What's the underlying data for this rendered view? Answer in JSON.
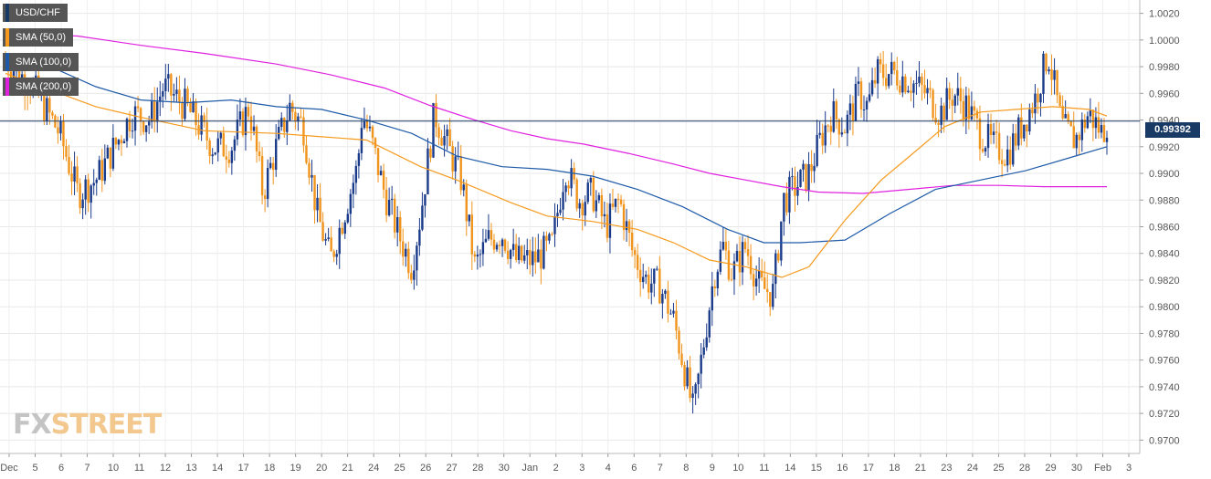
{
  "chart_data": {
    "type": "candlestick",
    "symbol": "USD/CHF",
    "timeframe": "1h",
    "legend": [
      {
        "label": "USD/CHF",
        "color": "#1a3a66"
      },
      {
        "label": "SMA (50,0)",
        "color": "#f59a1d"
      },
      {
        "label": "SMA (100,0)",
        "color": "#1e5aa8"
      },
      {
        "label": "SMA (200,0)",
        "color": "#e020e0"
      }
    ],
    "ylim": [
      0.969,
      1.003
    ],
    "yticks": [
      "1.0020",
      "1.0000",
      "0.9980",
      "0.9960",
      "0.9940",
      "0.9920",
      "0.9900",
      "0.9880",
      "0.9860",
      "0.9840",
      "0.9820",
      "0.9800",
      "0.9780",
      "0.9760",
      "0.9740",
      "0.9720",
      "0.9700"
    ],
    "xticks": [
      "Dec",
      "5",
      "6",
      "7",
      "10",
      "11",
      "12",
      "13",
      "14",
      "17",
      "18",
      "19",
      "20",
      "21",
      "24",
      "25",
      "26",
      "27",
      "28",
      "30",
      "Jan",
      "2",
      "3",
      "4",
      "6",
      "7",
      "8",
      "9",
      "10",
      "11",
      "14",
      "15",
      "16",
      "17",
      "18",
      "21",
      "23",
      "24",
      "25",
      "28",
      "29",
      "30",
      "Feb",
      "3"
    ],
    "last_price": "0.99392",
    "last_price_value": 0.99392,
    "close_path": [
      [
        0.0,
        0.9985
      ],
      [
        0.03,
        0.9965
      ],
      [
        0.06,
        0.993
      ],
      [
        0.08,
        0.9885
      ],
      [
        0.1,
        0.9895
      ],
      [
        0.125,
        0.9925
      ],
      [
        0.14,
        0.9945
      ],
      [
        0.16,
        0.994
      ],
      [
        0.175,
        0.9965
      ],
      [
        0.2,
        0.995
      ],
      [
        0.215,
        0.9935
      ],
      [
        0.23,
        0.992
      ],
      [
        0.25,
        0.992
      ],
      [
        0.27,
        0.995
      ],
      [
        0.285,
        0.9885
      ],
      [
        0.3,
        0.992
      ],
      [
        0.315,
        0.995
      ],
      [
        0.33,
        0.9935
      ],
      [
        0.345,
        0.987
      ],
      [
        0.36,
        0.9835
      ],
      [
        0.375,
        0.987
      ],
      [
        0.39,
        0.9905
      ],
      [
        0.395,
        0.9945
      ],
      [
        0.405,
        0.9925
      ],
      [
        0.42,
        0.9885
      ],
      [
        0.435,
        0.9855
      ],
      [
        0.45,
        0.983
      ],
      [
        0.46,
        0.987
      ],
      [
        0.475,
        0.9945
      ],
      [
        0.49,
        0.992
      ],
      [
        0.505,
        0.9895
      ],
      [
        0.52,
        0.983
      ],
      [
        0.535,
        0.985
      ],
      [
        0.55,
        0.9855
      ],
      [
        0.565,
        0.9835
      ],
      [
        0.585,
        0.9835
      ],
      [
        0.605,
        0.9845
      ],
      [
        0.62,
        0.9905
      ],
      [
        0.635,
        0.988
      ],
      [
        0.65,
        0.9885
      ],
      [
        0.665,
        0.986
      ],
      [
        0.68,
        0.988
      ],
      [
        0.695,
        0.984
      ],
      [
        0.71,
        0.982
      ],
      [
        0.725,
        0.9815
      ],
      [
        0.74,
        0.979
      ],
      [
        0.75,
        0.976
      ],
      [
        0.762,
        0.972
      ],
      [
        0.775,
        0.978
      ],
      [
        0.785,
        0.9825
      ],
      [
        0.795,
        0.9845
      ],
      [
        0.805,
        0.9825
      ],
      [
        0.82,
        0.9845
      ],
      [
        0.835,
        0.9815
      ],
      [
        0.85,
        0.981
      ],
      [
        0.862,
        0.988
      ],
      [
        0.875,
        0.989
      ],
      [
        0.89,
        0.99
      ],
      [
        0.905,
        0.993
      ],
      [
        0.915,
        0.9945
      ],
      [
        0.93,
        0.9935
      ],
      [
        0.945,
        0.996
      ],
      [
        0.955,
        0.995
      ],
      [
        0.965,
        0.9975
      ],
      [
        0.985,
        0.9975
      ],
      [
        1.0,
        0.997
      ],
      [
        1.02,
        0.996
      ],
      [
        1.035,
        0.9945
      ],
      [
        1.05,
        0.996
      ],
      [
        1.065,
        0.995
      ],
      [
        1.08,
        0.993
      ],
      [
        1.095,
        0.992
      ],
      [
        1.11,
        0.9915
      ],
      [
        1.125,
        0.9935
      ],
      [
        1.14,
        0.9955
      ],
      [
        1.155,
        0.999
      ],
      [
        1.17,
        0.9935
      ],
      [
        1.185,
        0.9925
      ],
      [
        1.2,
        0.9945
      ],
      [
        1.215,
        0.993
      ],
      [
        1.22,
        0.9939
      ]
    ],
    "sma50": [
      [
        0.0,
        0.9975
      ],
      [
        0.1,
        0.995
      ],
      [
        0.15,
        0.9942
      ],
      [
        0.22,
        0.9932
      ],
      [
        0.3,
        0.993
      ],
      [
        0.34,
        0.9928
      ],
      [
        0.4,
        0.9925
      ],
      [
        0.46,
        0.9905
      ],
      [
        0.5,
        0.9895
      ],
      [
        0.56,
        0.9878
      ],
      [
        0.6,
        0.9868
      ],
      [
        0.65,
        0.9864
      ],
      [
        0.7,
        0.9858
      ],
      [
        0.74,
        0.9848
      ],
      [
        0.78,
        0.9835
      ],
      [
        0.82,
        0.983
      ],
      [
        0.86,
        0.9822
      ],
      [
        0.89,
        0.983
      ],
      [
        0.93,
        0.9865
      ],
      [
        0.97,
        0.9895
      ],
      [
        1.0,
        0.9912
      ],
      [
        1.04,
        0.9935
      ],
      [
        1.08,
        0.9946
      ],
      [
        1.12,
        0.9948
      ],
      [
        1.16,
        0.995
      ],
      [
        1.2,
        0.9948
      ],
      [
        1.22,
        0.9943
      ]
    ],
    "sma100": [
      [
        0.0,
        0.999
      ],
      [
        0.05,
        0.998
      ],
      [
        0.1,
        0.9965
      ],
      [
        0.15,
        0.9955
      ],
      [
        0.2,
        0.9953
      ],
      [
        0.25,
        0.9955
      ],
      [
        0.3,
        0.995
      ],
      [
        0.35,
        0.9948
      ],
      [
        0.4,
        0.994
      ],
      [
        0.45,
        0.993
      ],
      [
        0.5,
        0.9913
      ],
      [
        0.55,
        0.9905
      ],
      [
        0.6,
        0.9903
      ],
      [
        0.65,
        0.9898
      ],
      [
        0.7,
        0.9888
      ],
      [
        0.75,
        0.9875
      ],
      [
        0.8,
        0.9858
      ],
      [
        0.84,
        0.9848
      ],
      [
        0.88,
        0.9848
      ],
      [
        0.93,
        0.985
      ],
      [
        0.98,
        0.987
      ],
      [
        1.03,
        0.9888
      ],
      [
        1.08,
        0.9895
      ],
      [
        1.13,
        0.9902
      ],
      [
        1.18,
        0.9912
      ],
      [
        1.22,
        0.992
      ]
    ],
    "sma200": [
      [
        0.0,
        1.0005
      ],
      [
        0.08,
        1.0003
      ],
      [
        0.15,
        0.9996
      ],
      [
        0.22,
        0.999
      ],
      [
        0.3,
        0.9982
      ],
      [
        0.36,
        0.9974
      ],
      [
        0.42,
        0.9964
      ],
      [
        0.47,
        0.9951
      ],
      [
        0.52,
        0.994
      ],
      [
        0.56,
        0.9932
      ],
      [
        0.6,
        0.9926
      ],
      [
        0.64,
        0.9922
      ],
      [
        0.69,
        0.9915
      ],
      [
        0.74,
        0.9907
      ],
      [
        0.78,
        0.99
      ],
      [
        0.82,
        0.9895
      ],
      [
        0.86,
        0.989
      ],
      [
        0.9,
        0.9886
      ],
      [
        0.95,
        0.9885
      ],
      [
        1.0,
        0.9888
      ],
      [
        1.05,
        0.9891
      ],
      [
        1.1,
        0.9891
      ],
      [
        1.15,
        0.989
      ],
      [
        1.22,
        0.989
      ]
    ]
  },
  "logo": {
    "fx": "FX",
    "street": "STREET"
  }
}
